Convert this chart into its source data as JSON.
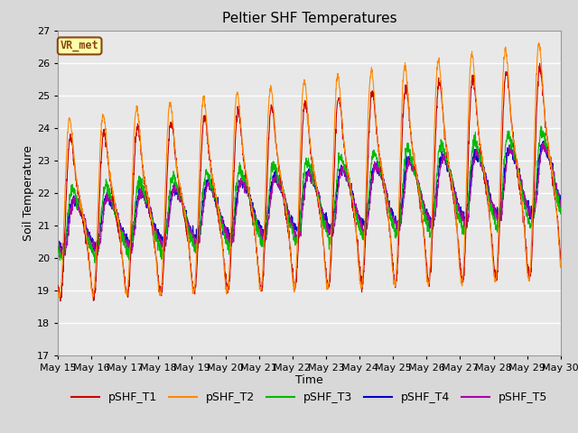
{
  "title": "Peltier SHF Temperatures",
  "xlabel": "Time",
  "ylabel": "Soil Temperature",
  "ylim": [
    17.0,
    27.0
  ],
  "yticks": [
    17.0,
    18.0,
    19.0,
    20.0,
    21.0,
    22.0,
    23.0,
    24.0,
    25.0,
    26.0,
    27.0
  ],
  "n_days": 15,
  "points_per_day": 144,
  "series": {
    "pSHF_T1": {
      "color": "#cc0000",
      "lw": 0.8
    },
    "pSHF_T2": {
      "color": "#ff8800",
      "lw": 0.8
    },
    "pSHF_T3": {
      "color": "#00bb00",
      "lw": 0.8
    },
    "pSHF_T4": {
      "color": "#0000cc",
      "lw": 0.8
    },
    "pSHF_T5": {
      "color": "#aa00aa",
      "lw": 0.8
    }
  },
  "fig_background": "#d8d8d8",
  "plot_background": "#e8e8e8",
  "grid_color": "#ffffff",
  "annotation_text": "VR_met",
  "annotation_bg": "#ffffaa",
  "annotation_border": "#8b4513",
  "title_fontsize": 11,
  "label_fontsize": 9,
  "tick_fontsize": 8,
  "legend_fontsize": 9
}
